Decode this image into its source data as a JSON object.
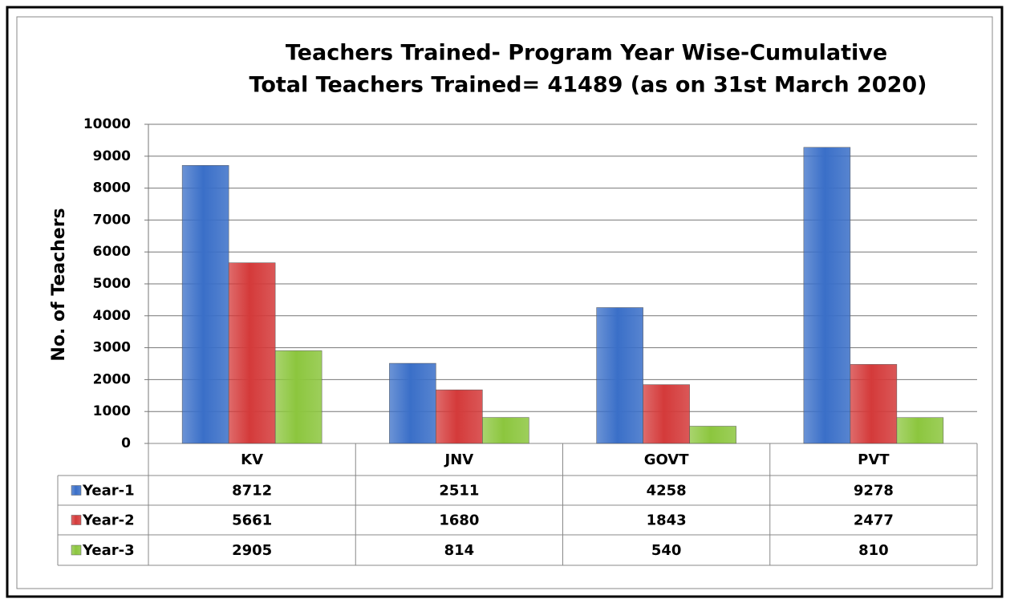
{
  "chart_data": {
    "type": "bar",
    "title": "Teachers Trained- Program Year Wise-Cumulative",
    "subtitle": "Total Teachers Trained= 41489 (as on 31st  March 2020)",
    "ylabel": "No. of Teachers",
    "categories": [
      "KV",
      "JNV",
      "GOVT",
      "PVT"
    ],
    "series": [
      {
        "name": "Year-1",
        "color": "#3a6fc8",
        "values": [
          8712,
          2511,
          4258,
          9278
        ]
      },
      {
        "name": "Year-2",
        "color": "#d43a3a",
        "values": [
          5661,
          1680,
          1843,
          2477
        ]
      },
      {
        "name": "Year-3",
        "color": "#8cc63e",
        "values": [
          2905,
          814,
          540,
          810
        ]
      }
    ],
    "ylim": [
      0,
      10000
    ],
    "yticks": [
      0,
      1000,
      2000,
      3000,
      4000,
      5000,
      6000,
      7000,
      8000,
      9000,
      10000
    ],
    "grid": true
  }
}
